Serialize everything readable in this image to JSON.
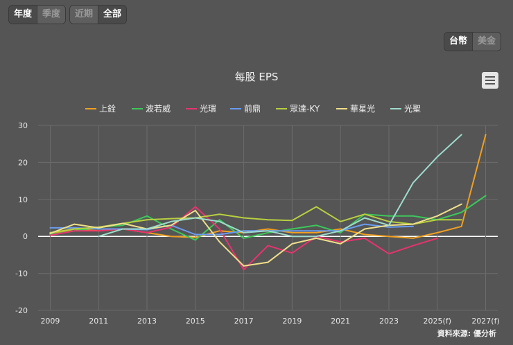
{
  "period_tabs": [
    "年度",
    "季度",
    "近期",
    "全部"
  ],
  "currency_tabs": [
    "台幣",
    "美金"
  ],
  "chart_data": {
    "type": "line",
    "title": "每股 EPS",
    "credit": "資料來源: 優分析",
    "xlabel": "",
    "ylabel": "",
    "ylim": [
      -20,
      30
    ],
    "yticks": [
      -20,
      -10,
      0,
      10,
      20,
      30
    ],
    "x": [
      2009,
      2010,
      2011,
      2012,
      2013,
      2014,
      2015,
      2016,
      2017,
      2018,
      2019,
      2020,
      2021,
      2022,
      2023,
      2024,
      2025,
      2026,
      2027
    ],
    "xtick_labels": [
      "2009",
      "2011",
      "2013",
      "2015",
      "2017",
      "2019",
      "2021",
      "2023",
      "2025(f)",
      "2027(f)"
    ],
    "xtick_years": [
      2009,
      2011,
      2013,
      2015,
      2017,
      2019,
      2021,
      2023,
      2025,
      2027
    ],
    "series": [
      {
        "name": "上銓",
        "color": "#f0a020",
        "values": [
          0.5,
          2.0,
          1.5,
          2.0,
          1.0,
          0,
          -0.3,
          1.5,
          1.0,
          2.0,
          1.0,
          1.0,
          2.0,
          0.5,
          0,
          -0.5,
          1.0,
          2.7,
          27.5
        ]
      },
      {
        "name": "波若威",
        "color": "#3cc85a",
        "values": [
          0.5,
          1.5,
          2.5,
          3.0,
          5.5,
          2.0,
          -1.0,
          4.5,
          -0.5,
          1.0,
          2.0,
          3.0,
          1.0,
          6.0,
          5.5,
          5.5,
          4.5,
          6.5,
          11.0
        ]
      },
      {
        "name": "光環",
        "color": "#e8336e",
        "values": [
          0.3,
          1.5,
          1.5,
          2.0,
          1.0,
          2.5,
          8.0,
          2.0,
          -9.0,
          -2.5,
          -4.5,
          0,
          -1.5,
          -0.5,
          -4.7,
          -2.5,
          -0.5,
          null,
          null
        ]
      },
      {
        "name": "前鼎",
        "color": "#6a9cf0",
        "values": [
          2.3,
          2.3,
          2.0,
          2.0,
          1.8,
          3.0,
          0.5,
          0.5,
          1.5,
          1.5,
          1.5,
          1.5,
          1.5,
          3.3,
          2.5,
          2.7,
          null,
          null,
          null
        ]
      },
      {
        "name": "眾達-KY",
        "color": "#b8d040",
        "values": [
          1.0,
          2.0,
          2.5,
          3.5,
          4.5,
          4.8,
          5.0,
          6.0,
          5.0,
          4.5,
          4.3,
          8.0,
          4.0,
          6.0,
          4.0,
          3.3,
          4.5,
          4.5,
          null
        ]
      },
      {
        "name": "華星光",
        "color": "#f0e08a",
        "values": [
          0.8,
          3.3,
          2.3,
          3.5,
          2.0,
          3.0,
          7.0,
          -1.5,
          -8.0,
          -7.0,
          -2.0,
          -0.5,
          -2.0,
          2.0,
          3.0,
          3.3,
          5.5,
          8.7,
          null
        ]
      },
      {
        "name": "光聖",
        "color": "#9edccc",
        "values": [
          null,
          null,
          0,
          2.0,
          2.0,
          4.0,
          5.0,
          4.0,
          1.0,
          1.5,
          0,
          0,
          1.5,
          5.0,
          3.0,
          14.5,
          21.5,
          27.5,
          null
        ]
      }
    ]
  }
}
